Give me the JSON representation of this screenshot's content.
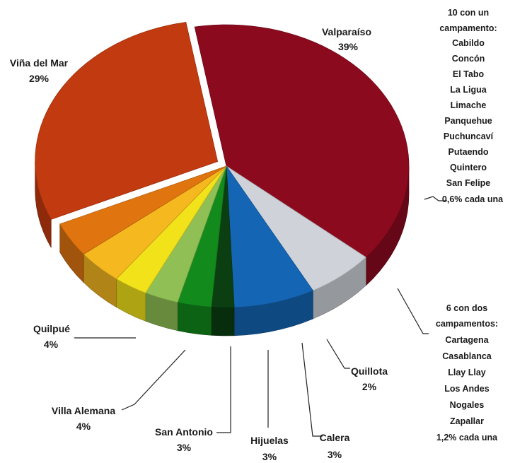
{
  "chart_data": {
    "type": "pie",
    "title": "",
    "slices": [
      {
        "label": "Valparaíso",
        "value_text": "39%",
        "value": 39,
        "color": "#8c0a1e"
      },
      {
        "label": "Otras 10 comunas (1 campamento c/u)",
        "value_text": "0,6% cada una",
        "value": 6,
        "color": "#cfd3d9"
      },
      {
        "label": "Otras 6 comunas (2 campamentos c/u)",
        "value_text": "1,2% cada una",
        "value": 7.2,
        "color": "#1565b5"
      },
      {
        "label": "Quillota",
        "value_text": "2%",
        "value": 2,
        "color": "#0b3f12"
      },
      {
        "label": "Calera",
        "value_text": "3%",
        "value": 3,
        "color": "#128a1c"
      },
      {
        "label": "Hijuelas",
        "value_text": "3%",
        "value": 3,
        "color": "#8fbf55"
      },
      {
        "label": "San Antonio",
        "value_text": "3%",
        "value": 3,
        "color": "#f2e21a"
      },
      {
        "label": "Villa Alemana",
        "value_text": "4%",
        "value": 4,
        "color": "#f5b81f"
      },
      {
        "label": "Quilpué",
        "value_text": "4%",
        "value": 4,
        "color": "#e07510"
      },
      {
        "label": "Viña del Mar",
        "value_text": "29%",
        "value": 29,
        "color": "#c23a0f"
      }
    ],
    "group_one_camp": {
      "header": [
        "10 con un",
        "campamento:"
      ],
      "items": [
        "Cabildo",
        "Concón",
        "El Tabo",
        "La Ligua",
        "Limache",
        "Panquehue",
        "Puchuncaví",
        "Putaendo",
        "Quintero",
        "San Felipe"
      ],
      "footer": "0,6% cada una"
    },
    "group_two_camp": {
      "header": [
        "6 con dos",
        "campamentos:"
      ],
      "items": [
        "Cartagena",
        "Casablanca",
        "Llay Llay",
        "Los Andes",
        "Nogales",
        "Zapallar"
      ],
      "footer": "1,2% cada una"
    }
  }
}
